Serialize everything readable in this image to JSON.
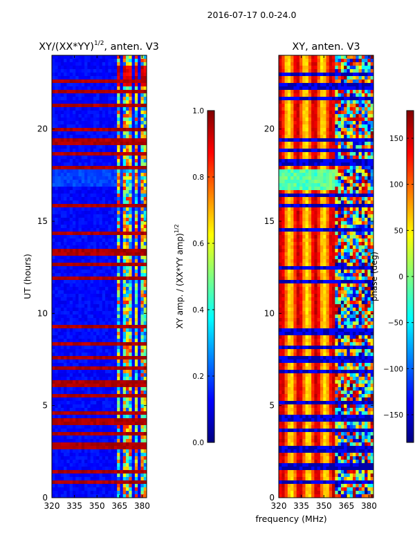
{
  "suptitle": "2016-07-17 0.0-24.0",
  "colors": {
    "nodata": "#ffffff",
    "axis": "#000000"
  },
  "chart_data": [
    {
      "type": "heatmap",
      "title": "XY/(XX*YY)",
      "title_exponent": "1/2",
      "title_suffix": ", anten. V3",
      "xlabel": "",
      "ylabel": "UT (hours)",
      "xlim": [
        320,
        383
      ],
      "ylim": [
        0,
        24
      ],
      "xticks": [
        "320",
        "335",
        "350",
        "365",
        "380"
      ],
      "yticks": [
        "0",
        "5",
        "10",
        "15",
        "20"
      ],
      "colormap": "jet",
      "colorbar": {
        "label": "XY amp. / (XX*YY amp)",
        "label_exponent": "1/2",
        "range": [
          0.0,
          1.0
        ],
        "ticks": [
          "0.0",
          "0.2",
          "0.4",
          "0.6",
          "0.8",
          "1.0"
        ]
      },
      "strong_rfi_hours": [
        0.9,
        1.4,
        2.8,
        3.5,
        4.1,
        4.6,
        5.5,
        6.2,
        7.0,
        7.6,
        8.3,
        9.3,
        11.9,
        12.6,
        13.3,
        14.4,
        15.8,
        17.9,
        18.6,
        19.3,
        20.0,
        21.3,
        22.0,
        22.6
      ],
      "band_freq_ranges": [
        [
          362.5,
          365.5
        ],
        [
          367.5,
          372.5
        ],
        [
          374.5,
          377.5
        ],
        [
          379.5,
          382.5
        ]
      ]
    },
    {
      "type": "heatmap",
      "title": "XY, anten. V3",
      "xlabel": "frequency (MHz)",
      "ylabel": "",
      "xlim": [
        320,
        383
      ],
      "ylim": [
        0,
        24
      ],
      "xticks": [
        "320",
        "335",
        "350",
        "365",
        "380"
      ],
      "yticks": [
        "0",
        "5",
        "10",
        "15",
        "20"
      ],
      "colormap": "jet",
      "colorbar": {
        "label": "phase (deg)",
        "range": [
          -180,
          180
        ],
        "ticks": [
          "−150",
          "−100",
          "−50",
          "0",
          "50",
          "100",
          "150"
        ]
      },
      "flagged_hours": [
        0.8,
        1.7,
        2.6,
        3.7,
        4.3,
        5.2,
        6.9,
        7.5,
        8.2,
        9.0,
        11.7,
        12.5,
        14.5,
        15.9,
        16.4,
        18.2,
        18.8,
        19.4,
        21.6,
        22.3,
        23.0
      ]
    }
  ]
}
